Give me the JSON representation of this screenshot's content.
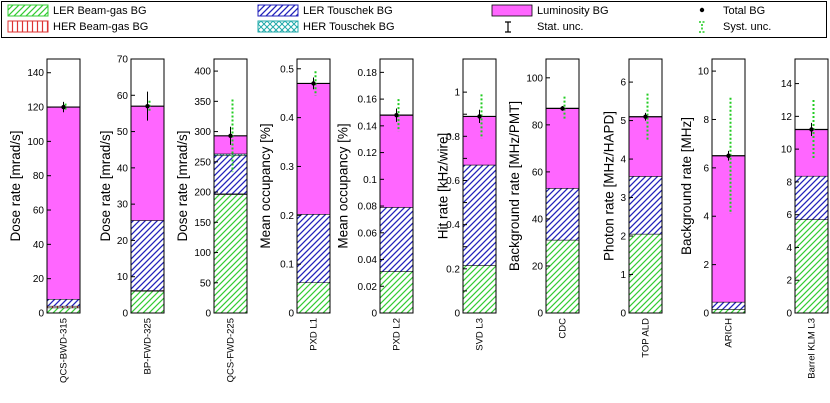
{
  "legend": [
    {
      "key": "ler_bg",
      "label": "LER Beam-gas BG"
    },
    {
      "key": "ler_tou",
      "label": "LER Touschek BG"
    },
    {
      "key": "lumi",
      "label": "Luminosity BG"
    },
    {
      "key": "total",
      "label": "Total BG"
    },
    {
      "key": "her_bg",
      "label": "HER Beam-gas BG"
    },
    {
      "key": "her_tou",
      "label": "HER Touschek BG"
    },
    {
      "key": "stat",
      "label": "Stat. unc."
    },
    {
      "key": "syst",
      "label": "Syst. unc."
    }
  ],
  "colors": {
    "ler_bg": "#33cc33",
    "her_bg": "#dd3333",
    "ler_tou": "#2222bb",
    "her_tou": "#22aaaa",
    "lumi": "#ff66ff",
    "syst": "#22cc22",
    "stat": "#000000"
  },
  "chart_data": [
    {
      "type": "bar",
      "category": "QCS-BWD-315",
      "ylabel": "Dose rate [mrad/s]",
      "ylim": [
        0,
        148
      ],
      "ticks": [
        0,
        20,
        40,
        60,
        80,
        100,
        120,
        140
      ],
      "tick_labels": [
        "0",
        "20",
        "40",
        "60",
        "80",
        "100",
        "120",
        "140"
      ],
      "stack": {
        "ler_bg": 3,
        "her_bg": 1,
        "ler_tou": 4,
        "her_tou": 0,
        "lumi": 112
      },
      "total": 120,
      "stat": 3,
      "syst": 2
    },
    {
      "type": "bar",
      "category": "BP-FWD-325",
      "ylabel": "Dose rate [mrad/s]",
      "ylim": [
        0,
        70
      ],
      "ticks": [
        0,
        10,
        20,
        30,
        40,
        50,
        60,
        70
      ],
      "tick_labels": [
        "0",
        "10",
        "20",
        "30",
        "40",
        "50",
        "60",
        "70"
      ],
      "stack": {
        "ler_bg": 6,
        "her_bg": 0.2,
        "ler_tou": 19.3,
        "her_tou": 0,
        "lumi": 31.5
      },
      "total": 57,
      "stat": 4,
      "syst": 1.5
    },
    {
      "type": "bar",
      "category": "QCS-FWD-225",
      "ylabel": "Dose rate [mrad/s]",
      "ylim": [
        0,
        420
      ],
      "ticks": [
        0,
        50,
        100,
        150,
        200,
        250,
        300,
        350,
        400
      ],
      "tick_labels": [
        "0",
        "50",
        "100",
        "150",
        "200",
        "250",
        "300",
        "350",
        "400"
      ],
      "stack": {
        "ler_bg": 196,
        "her_bg": 1,
        "ler_tou": 63,
        "her_tou": 3,
        "lumi": 30
      },
      "total": 293,
      "stat": 15,
      "syst": 60
    },
    {
      "type": "bar",
      "category": "PXD L1",
      "ylabel": "Mean occupancy [%]",
      "ylim": [
        0,
        0.52
      ],
      "ticks": [
        0,
        0.1,
        0.2,
        0.3,
        0.4,
        0.5
      ],
      "tick_labels": [
        "0",
        "0.1",
        "0.2",
        "0.3",
        "0.4",
        "0.5"
      ],
      "stack": {
        "ler_bg": 0.062,
        "her_bg": 0,
        "ler_tou": 0.14,
        "her_tou": 0,
        "lumi": 0.268
      },
      "total": 0.47,
      "stat": 0.012,
      "syst": 0.025
    },
    {
      "type": "bar",
      "category": "PXD L2",
      "ylabel": "Mean occupancy [%]",
      "ylim": [
        0,
        0.19
      ],
      "ticks": [
        0,
        0.02,
        0.04,
        0.06,
        0.08,
        0.1,
        0.12,
        0.14,
        0.16,
        0.18
      ],
      "tick_labels": [
        "0",
        "0.02",
        "0.04",
        "0.06",
        "0.08",
        "0.1",
        "0.12",
        "0.14",
        "0.16",
        "0.18"
      ],
      "stack": {
        "ler_bg": 0.031,
        "her_bg": 0,
        "ler_tou": 0.048,
        "her_tou": 0,
        "lumi": 0.069
      },
      "total": 0.148,
      "stat": 0.005,
      "syst": 0.012
    },
    {
      "type": "bar",
      "category": "SVD L3",
      "ylabel": "Hit rate [kHz/wire]",
      "ylim": [
        0,
        1.15
      ],
      "ticks": [
        0,
        0.1,
        0.2,
        0.3,
        0.4,
        0.5,
        0.6,
        0.7,
        0.8,
        0.9,
        1
      ],
      "tick_labels": [
        "0",
        "",
        "0.2",
        "",
        "0.4",
        "",
        "0.6",
        "",
        "0.8",
        "",
        "1"
      ],
      "stack": {
        "ler_bg": 0.215,
        "her_bg": 0,
        "ler_tou": 0.455,
        "her_tou": 0,
        "lumi": 0.22
      },
      "total": 0.89,
      "stat": 0.03,
      "syst": 0.1
    },
    {
      "type": "bar",
      "category": "CDC",
      "ylabel": "Background rate [MHz/PMT]",
      "ylim": [
        0,
        108
      ],
      "ticks": [
        0,
        20,
        40,
        60,
        80,
        100
      ],
      "tick_labels": [
        "0",
        "20",
        "40",
        "60",
        "80",
        "100"
      ],
      "stack": {
        "ler_bg": 31,
        "her_bg": 0,
        "ler_tou": 22,
        "her_tou": 0,
        "lumi": 34
      },
      "total": 87,
      "stat": 1,
      "syst": 5
    },
    {
      "type": "bar",
      "category": "TOP ALD",
      "ylabel": "Photon rate [MHz/HAPD]",
      "ylim": [
        0,
        6.6
      ],
      "ticks": [
        0,
        1,
        2,
        3,
        4,
        5,
        6
      ],
      "tick_labels": [
        "0",
        "1",
        "2",
        "3",
        "4",
        "5",
        "6"
      ],
      "stack": {
        "ler_bg": 2.05,
        "her_bg": 0,
        "ler_tou": 1.5,
        "her_tou": 0,
        "lumi": 1.55
      },
      "total": 5.1,
      "stat": 0.1,
      "syst": 0.6
    },
    {
      "type": "bar",
      "category": "ARICH",
      "ylabel": "Background rate [MHz]",
      "ylim": [
        0,
        10.5
      ],
      "ticks": [
        0,
        2,
        4,
        6,
        8,
        10
      ],
      "tick_labels": [
        "0",
        "2",
        "4",
        "6",
        "8",
        "10"
      ],
      "stack": {
        "ler_bg": 0.15,
        "her_bg": 0,
        "ler_tou": 0.3,
        "her_tou": 0,
        "lumi": 6.05
      },
      "total": 6.5,
      "stat": 0.2,
      "syst": 2.4
    },
    {
      "type": "bar",
      "category": "Barrel KLM L3",
      "ylabel": "",
      "ylim": [
        0,
        15.5
      ],
      "ticks": [
        0,
        2,
        4,
        6,
        8,
        10,
        12,
        14
      ],
      "tick_labels": [
        "0",
        "2",
        "4",
        "6",
        "8",
        "10",
        "12",
        "14"
      ],
      "stack": {
        "ler_bg": 5.7,
        "her_bg": 0,
        "ler_tou": 2.65,
        "her_tou": 0,
        "lumi": 2.85
      },
      "total": 11.2,
      "stat": 0.4,
      "syst": 1.8
    }
  ]
}
